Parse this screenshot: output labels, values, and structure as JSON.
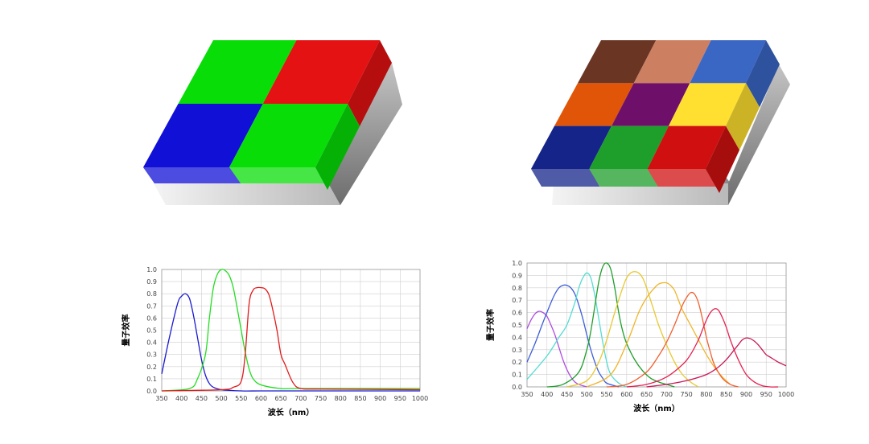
{
  "sensor_left": {
    "cells": [
      {
        "color": "#08dd08",
        "name": "green"
      },
      {
        "color": "#e41212",
        "name": "red"
      },
      {
        "color": "#1010d6",
        "name": "blue"
      },
      {
        "color": "#08dd08",
        "name": "green"
      }
    ]
  },
  "sensor_right": {
    "cells": [
      {
        "color": "#6a3522",
        "name": "brown"
      },
      {
        "color": "#cd7f61",
        "name": "tan"
      },
      {
        "color": "#3a66c4",
        "name": "steel-blue"
      },
      {
        "color": "#e05507",
        "name": "orange"
      },
      {
        "color": "#6e0f6a",
        "name": "purple"
      },
      {
        "color": "#ffe030",
        "name": "yellow"
      },
      {
        "color": "#142488",
        "name": "navy"
      },
      {
        "color": "#1e9e2a",
        "name": "green"
      },
      {
        "color": "#d01010",
        "name": "red"
      }
    ]
  },
  "chart_data": [
    {
      "type": "line",
      "title": "",
      "xlabel": "波长（nm）",
      "ylabel": "量子效率",
      "xlim": [
        350,
        1000
      ],
      "ylim": [
        0,
        1.0
      ],
      "xticks": [
        350,
        400,
        450,
        500,
        550,
        600,
        650,
        700,
        750,
        800,
        850,
        900,
        950,
        1000
      ],
      "yticks": [
        "0.0",
        "0.1",
        "0.2",
        "0.3",
        "0.4",
        "0.5",
        "0.6",
        "0.7",
        "0.8",
        "0.9",
        "1.0"
      ],
      "series": [
        {
          "name": "blue",
          "color": "#1a1ad0",
          "x": [
            350,
            370,
            390,
            400,
            410,
            420,
            430,
            440,
            450,
            460,
            470,
            480,
            500,
            550,
            600,
            700,
            1000
          ],
          "y": [
            0.14,
            0.45,
            0.72,
            0.78,
            0.8,
            0.76,
            0.62,
            0.44,
            0.26,
            0.13,
            0.06,
            0.03,
            0.01,
            0.0,
            0.0,
            0.0,
            0.0
          ]
        },
        {
          "name": "green",
          "color": "#22dd22",
          "x": [
            350,
            420,
            440,
            460,
            470,
            480,
            490,
            500,
            510,
            520,
            530,
            540,
            550,
            560,
            570,
            580,
            600,
            650,
            700,
            1000
          ],
          "y": [
            0.0,
            0.02,
            0.1,
            0.3,
            0.6,
            0.85,
            0.96,
            1.0,
            0.99,
            0.95,
            0.85,
            0.68,
            0.5,
            0.32,
            0.18,
            0.1,
            0.05,
            0.02,
            0.02,
            0.02
          ]
        },
        {
          "name": "red",
          "color": "#e01a1a",
          "x": [
            350,
            500,
            530,
            550,
            560,
            570,
            580,
            590,
            600,
            610,
            620,
            630,
            640,
            650,
            660,
            680,
            700,
            750,
            1000
          ],
          "y": [
            0.0,
            0.01,
            0.03,
            0.08,
            0.3,
            0.72,
            0.83,
            0.85,
            0.85,
            0.84,
            0.79,
            0.66,
            0.5,
            0.3,
            0.22,
            0.07,
            0.02,
            0.015,
            0.01
          ]
        }
      ]
    },
    {
      "type": "line",
      "title": "",
      "xlabel": "波长（nm）",
      "ylabel": "量子效率",
      "xlim": [
        350,
        1000
      ],
      "ylim": [
        0,
        1.0
      ],
      "xticks": [
        350,
        400,
        450,
        500,
        550,
        600,
        650,
        700,
        750,
        800,
        850,
        900,
        950,
        1000
      ],
      "yticks": [
        "0.0",
        "0.1",
        "0.2",
        "0.3",
        "0.4",
        "0.5",
        "0.6",
        "0.7",
        "0.8",
        "0.9",
        "1.0"
      ],
      "series": [
        {
          "name": "violet",
          "color": "#b04ce0",
          "x": [
            350,
            360,
            370,
            380,
            390,
            400,
            410,
            420,
            430,
            440,
            450,
            460,
            470,
            480,
            500
          ],
          "y": [
            0.47,
            0.54,
            0.59,
            0.61,
            0.6,
            0.57,
            0.5,
            0.42,
            0.32,
            0.22,
            0.14,
            0.08,
            0.04,
            0.02,
            0.0
          ]
        },
        {
          "name": "blue",
          "color": "#3d5ed8",
          "x": [
            350,
            370,
            390,
            410,
            420,
            430,
            440,
            450,
            460,
            470,
            480,
            490,
            500,
            510,
            520,
            530,
            540,
            550,
            580
          ],
          "y": [
            0.2,
            0.35,
            0.52,
            0.68,
            0.75,
            0.8,
            0.82,
            0.82,
            0.8,
            0.75,
            0.66,
            0.55,
            0.42,
            0.3,
            0.2,
            0.12,
            0.07,
            0.03,
            0.0
          ]
        },
        {
          "name": "cyan",
          "color": "#55dcd2",
          "x": [
            350,
            400,
            430,
            450,
            470,
            480,
            490,
            500,
            510,
            520,
            530,
            540,
            550,
            560,
            580,
            600
          ],
          "y": [
            0.06,
            0.25,
            0.4,
            0.5,
            0.68,
            0.8,
            0.88,
            0.92,
            0.88,
            0.74,
            0.55,
            0.36,
            0.2,
            0.1,
            0.03,
            0.0
          ]
        },
        {
          "name": "green",
          "color": "#1e9e2a",
          "x": [
            400,
            440,
            480,
            500,
            510,
            520,
            530,
            540,
            550,
            560,
            570,
            580,
            590,
            600,
            620,
            640,
            660,
            680,
            700,
            720
          ],
          "y": [
            0.0,
            0.02,
            0.12,
            0.3,
            0.45,
            0.65,
            0.85,
            0.97,
            1.0,
            0.95,
            0.8,
            0.6,
            0.45,
            0.35,
            0.22,
            0.13,
            0.07,
            0.04,
            0.02,
            0.0
          ]
        },
        {
          "name": "yellow",
          "color": "#e8c830",
          "x": [
            450,
            500,
            530,
            550,
            570,
            590,
            600,
            610,
            620,
            630,
            640,
            650,
            660,
            670,
            680,
            700,
            720,
            740,
            760,
            780
          ],
          "y": [
            0.0,
            0.05,
            0.2,
            0.38,
            0.6,
            0.8,
            0.88,
            0.92,
            0.93,
            0.92,
            0.88,
            0.8,
            0.7,
            0.6,
            0.5,
            0.34,
            0.2,
            0.1,
            0.04,
            0.0
          ]
        },
        {
          "name": "gold",
          "color": "#f0b428",
          "x": [
            500,
            560,
            600,
            630,
            650,
            670,
            680,
            690,
            700,
            710,
            720,
            730,
            740,
            760,
            780,
            800,
            820,
            840,
            860
          ],
          "y": [
            0.0,
            0.1,
            0.35,
            0.6,
            0.72,
            0.8,
            0.83,
            0.84,
            0.84,
            0.82,
            0.78,
            0.7,
            0.62,
            0.5,
            0.38,
            0.26,
            0.16,
            0.08,
            0.02
          ]
        },
        {
          "name": "orange",
          "color": "#f06030",
          "x": [
            550,
            600,
            650,
            680,
            700,
            720,
            740,
            750,
            760,
            770,
            780,
            790,
            800,
            810,
            820,
            840,
            860,
            880
          ],
          "y": [
            0.0,
            0.02,
            0.12,
            0.25,
            0.36,
            0.5,
            0.66,
            0.72,
            0.76,
            0.75,
            0.68,
            0.55,
            0.4,
            0.28,
            0.18,
            0.07,
            0.02,
            0.0
          ]
        },
        {
          "name": "crimson",
          "color": "#e42050",
          "x": [
            600,
            650,
            700,
            740,
            760,
            780,
            790,
            800,
            810,
            820,
            830,
            840,
            850,
            860,
            880,
            900,
            920,
            940,
            960,
            980
          ],
          "y": [
            0.0,
            0.02,
            0.08,
            0.18,
            0.26,
            0.38,
            0.46,
            0.54,
            0.6,
            0.63,
            0.62,
            0.56,
            0.48,
            0.38,
            0.22,
            0.1,
            0.04,
            0.01,
            0.0,
            0.0
          ]
        },
        {
          "name": "deep-red",
          "color": "#c81858",
          "x": [
            650,
            700,
            750,
            800,
            830,
            850,
            870,
            880,
            890,
            900,
            910,
            920,
            930,
            940,
            950,
            960,
            970,
            980,
            990,
            1000
          ],
          "y": [
            0.0,
            0.02,
            0.05,
            0.1,
            0.16,
            0.22,
            0.3,
            0.34,
            0.38,
            0.395,
            0.39,
            0.37,
            0.34,
            0.3,
            0.26,
            0.24,
            0.22,
            0.2,
            0.185,
            0.17
          ]
        }
      ]
    }
  ]
}
